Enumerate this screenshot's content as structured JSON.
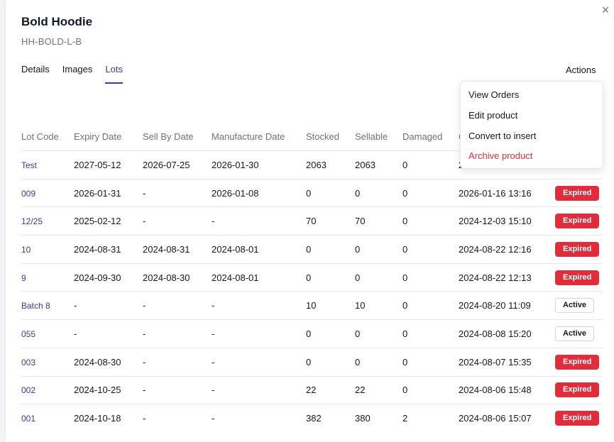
{
  "product": {
    "name": "Bold Hoodie",
    "sku": "HH-BOLD-L-B"
  },
  "tabs": [
    {
      "label": "Details"
    },
    {
      "label": "Images"
    },
    {
      "label": "Lots"
    }
  ],
  "actions": {
    "label": "Actions",
    "menu": [
      {
        "label": "View Orders"
      },
      {
        "label": "Edit product"
      },
      {
        "label": "Convert to insert"
      },
      {
        "label": "Archive product"
      }
    ]
  },
  "table": {
    "headers": [
      "Lot Code",
      "Expiry Date",
      "Sell By Date",
      "Manufacture Date",
      "Stocked",
      "Sellable",
      "Damaged",
      "C"
    ],
    "rows": [
      {
        "lot": "Test",
        "expiry": "2027-05-12",
        "sell_by": "2026-07-25",
        "manufacture": "2026-01-30",
        "stocked": "2063",
        "sellable": "2063",
        "damaged": "0",
        "created": "2",
        "status": ""
      },
      {
        "lot": "009",
        "expiry": "2026-01-31",
        "sell_by": "-",
        "manufacture": "2026-01-08",
        "stocked": "0",
        "sellable": "0",
        "damaged": "0",
        "created": "2026-01-16 13:16",
        "status": "Expired"
      },
      {
        "lot": "12/25",
        "expiry": "2025-02-12",
        "sell_by": "-",
        "manufacture": "-",
        "stocked": "70",
        "sellable": "70",
        "damaged": "0",
        "created": "2024-12-03 15:10",
        "status": "Expired"
      },
      {
        "lot": "10",
        "expiry": "2024-08-31",
        "sell_by": "2024-08-31",
        "manufacture": "2024-08-01",
        "stocked": "0",
        "sellable": "0",
        "damaged": "0",
        "created": "2024-08-22 12:16",
        "status": "Expired"
      },
      {
        "lot": "9",
        "expiry": "2024-09-30",
        "sell_by": "2024-08-30",
        "manufacture": "2024-08-01",
        "stocked": "0",
        "sellable": "0",
        "damaged": "0",
        "created": "2024-08-22 12:13",
        "status": "Expired"
      },
      {
        "lot": "Batch 8",
        "expiry": "-",
        "sell_by": "-",
        "manufacture": "-",
        "stocked": "10",
        "sellable": "10",
        "damaged": "0",
        "created": "2024-08-20 11:09",
        "status": "Active"
      },
      {
        "lot": "055",
        "expiry": "-",
        "sell_by": "-",
        "manufacture": "-",
        "stocked": "0",
        "sellable": "0",
        "damaged": "0",
        "created": "2024-08-08 15:20",
        "status": "Active"
      },
      {
        "lot": "003",
        "expiry": "2024-08-30",
        "sell_by": "-",
        "manufacture": "-",
        "stocked": "0",
        "sellable": "0",
        "damaged": "0",
        "created": "2024-08-07 15:35",
        "status": "Expired"
      },
      {
        "lot": "002",
        "expiry": "2024-10-25",
        "sell_by": "-",
        "manufacture": "-",
        "stocked": "22",
        "sellable": "22",
        "damaged": "0",
        "created": "2024-08-06 15:48",
        "status": "Expired"
      },
      {
        "lot": "001",
        "expiry": "2024-10-18",
        "sell_by": "-",
        "manufacture": "-",
        "stocked": "382",
        "sellable": "380",
        "damaged": "2",
        "created": "2024-08-06 15:07",
        "status": "Expired"
      }
    ]
  },
  "colors": {
    "accent": "#2f3f9f",
    "danger": "#e02d3c",
    "muted": "#6b7280"
  },
  "icons": {
    "close": "close-icon"
  }
}
